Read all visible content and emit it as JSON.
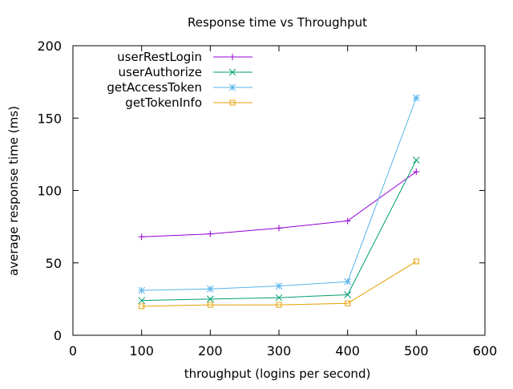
{
  "chart_data": {
    "type": "line",
    "title": "Response time vs Throughput",
    "xlabel": "throughput (logins per second)",
    "ylabel": "average response time (ms)",
    "xlim": [
      0,
      600
    ],
    "ylim": [
      0,
      200
    ],
    "xticks": [
      0,
      100,
      200,
      300,
      400,
      500,
      600
    ],
    "yticks": [
      0,
      50,
      100,
      150,
      200
    ],
    "grid": false,
    "legend_position": "top-left",
    "x": [
      100,
      200,
      300,
      400,
      500
    ],
    "series": [
      {
        "name": "userRestLogin",
        "color": "#9400d3",
        "marker": "plus",
        "values": [
          68,
          70,
          74,
          79,
          113
        ]
      },
      {
        "name": "userAuthorize",
        "color": "#009e73",
        "marker": "cross",
        "values": [
          24,
          25,
          26,
          28,
          121
        ]
      },
      {
        "name": "getAccessToken",
        "color": "#56b4e9",
        "marker": "star",
        "values": [
          31,
          32,
          34,
          37,
          164
        ]
      },
      {
        "name": "getTokenInfo",
        "color": "#e69f00",
        "marker": "square",
        "values": [
          20,
          21,
          21,
          22,
          51
        ]
      }
    ]
  }
}
